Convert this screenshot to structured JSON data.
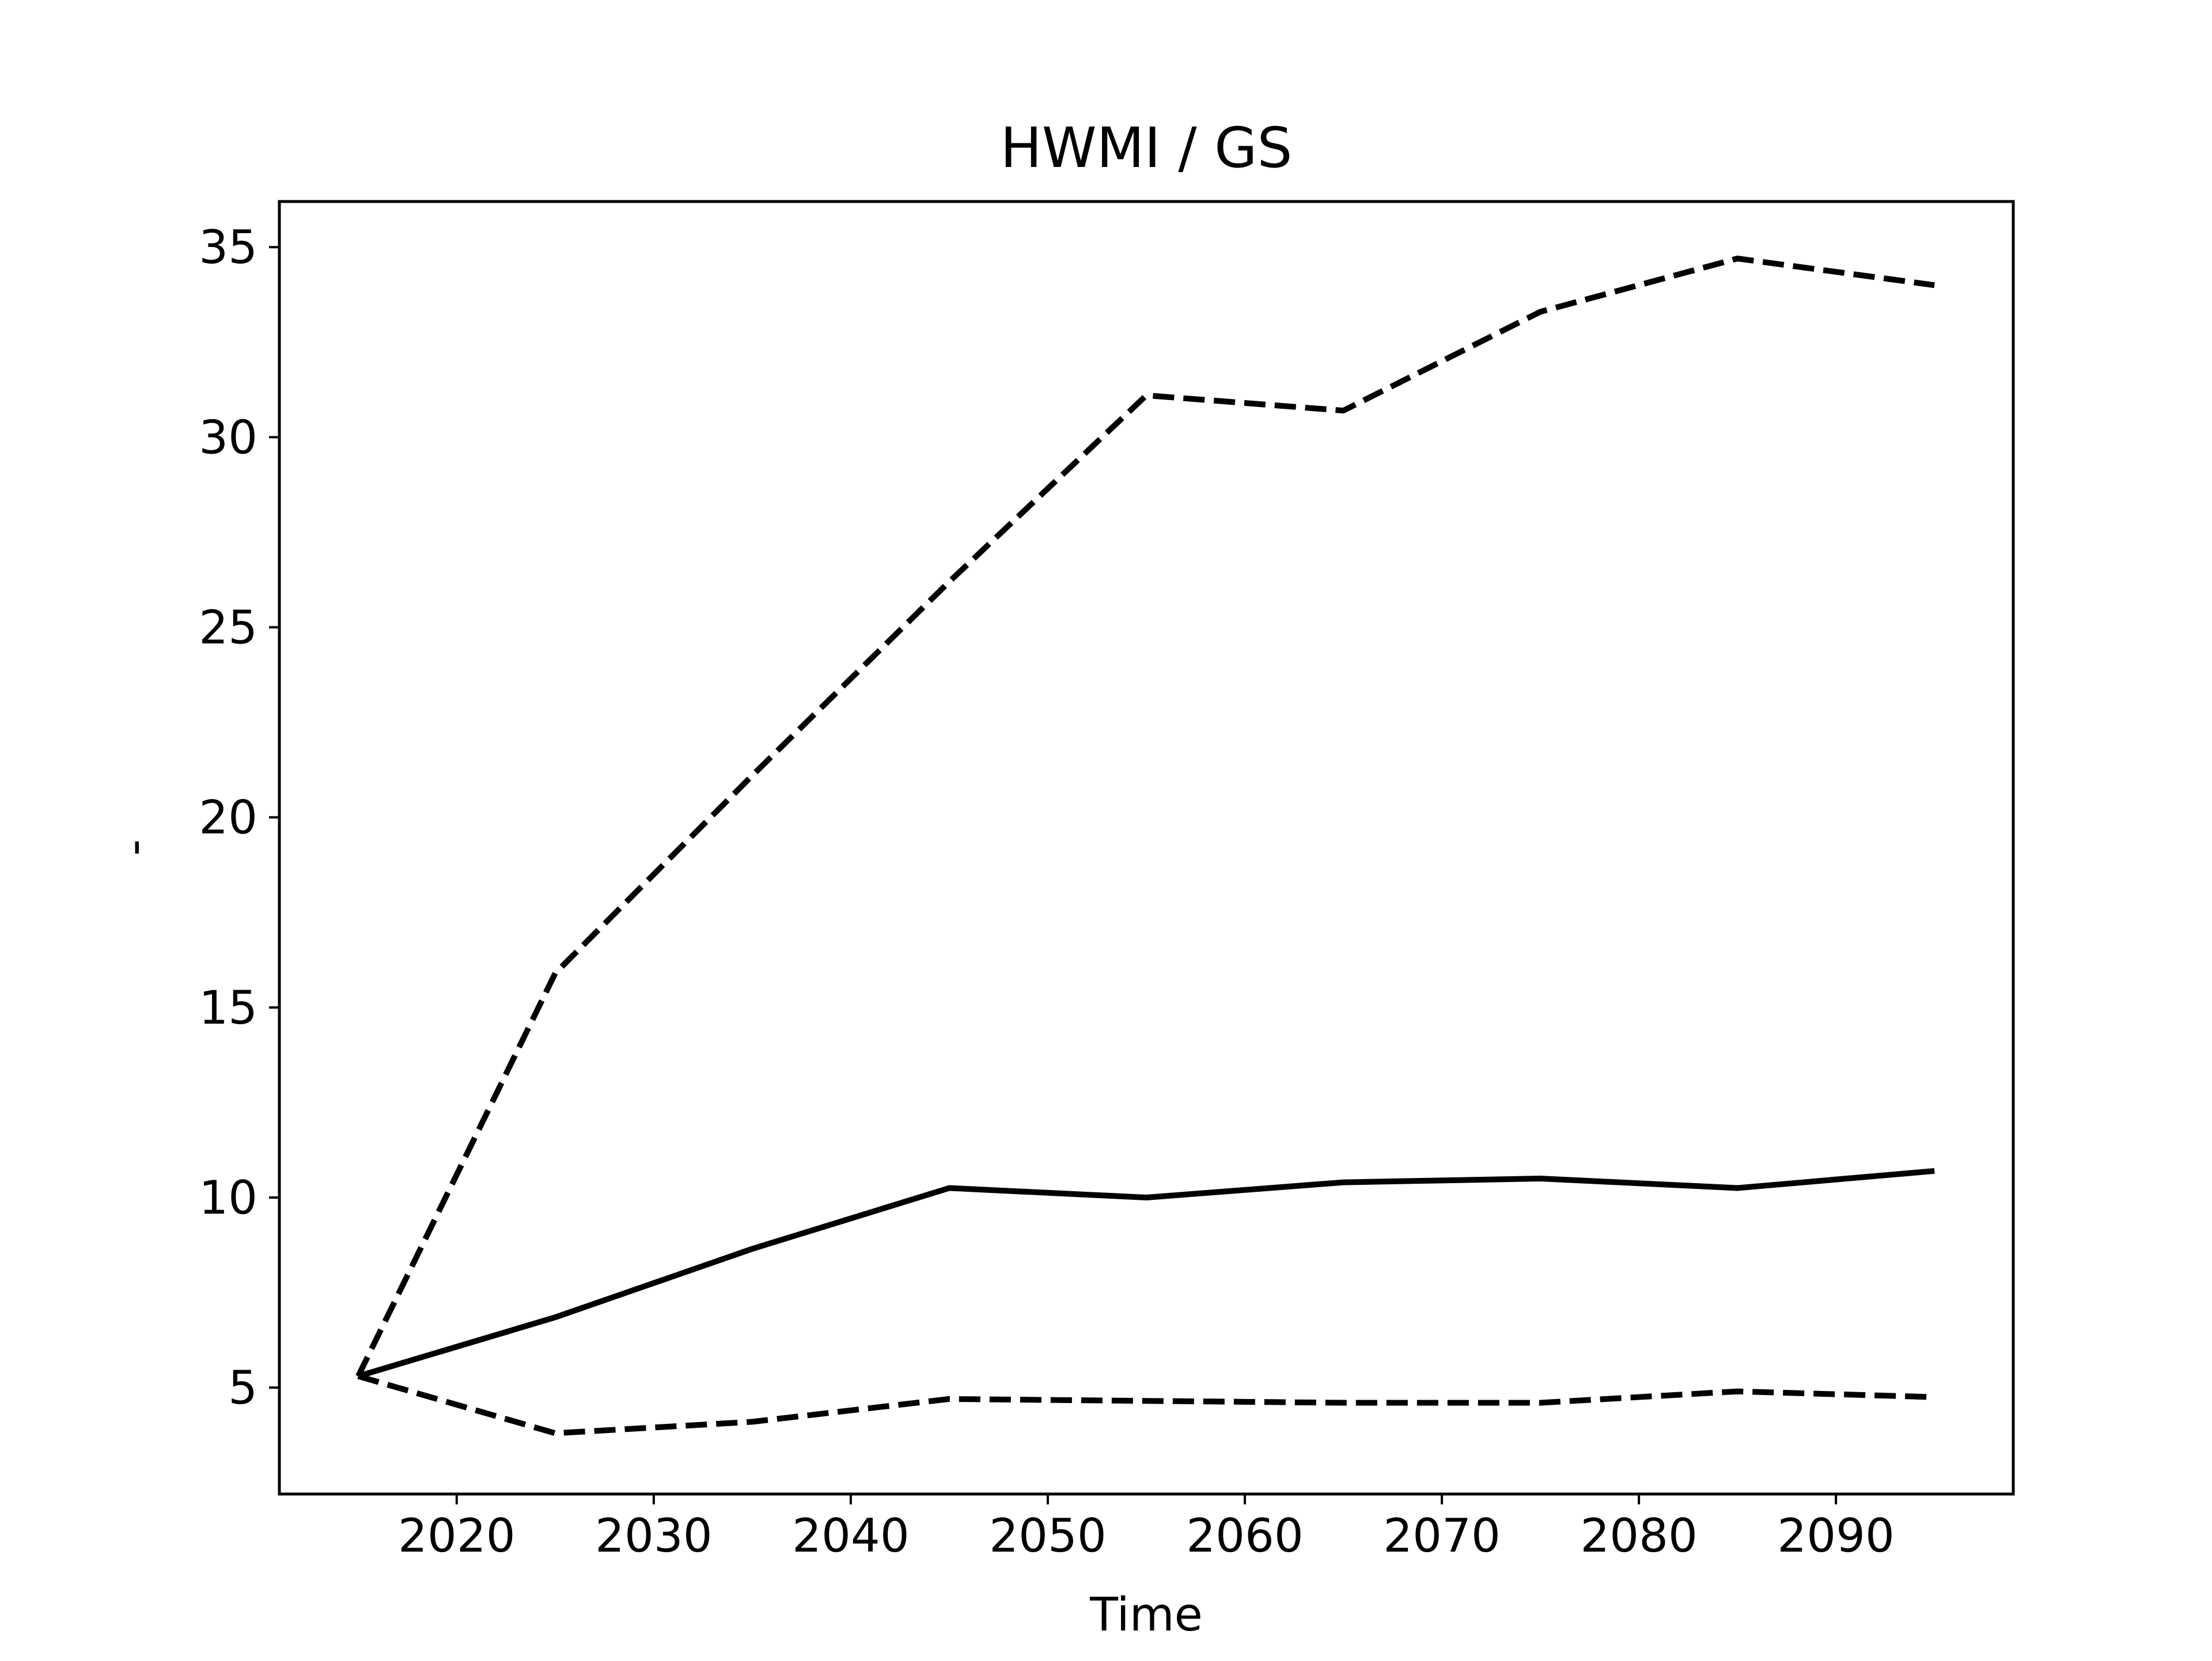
{
  "chart_data": {
    "type": "line",
    "title": "HWMI / GS",
    "xlabel": "Time",
    "ylabel": "-",
    "x": [
      2015,
      2025,
      2035,
      2045,
      2055,
      2065,
      2075,
      2085,
      2095
    ],
    "xlim": [
      2011,
      2099
    ],
    "ylim": [
      2.2,
      36.2
    ],
    "xticks": [
      2020,
      2030,
      2040,
      2050,
      2060,
      2070,
      2080,
      2090
    ],
    "yticks": [
      5,
      10,
      15,
      20,
      25,
      30,
      35
    ],
    "grid": false,
    "series": [
      {
        "style": "solid",
        "color": "#000000",
        "values": [
          5.3,
          6.85,
          8.65,
          10.25,
          10.0,
          10.4,
          10.5,
          10.25,
          10.7
        ]
      },
      {
        "style": "dashed",
        "color": "#000000",
        "values": [
          5.3,
          15.9,
          21.1,
          26.2,
          31.1,
          30.7,
          33.3,
          34.7,
          34.0
        ]
      },
      {
        "style": "dashed",
        "color": "#000000",
        "values": [
          5.3,
          3.8,
          4.1,
          4.7,
          4.65,
          4.6,
          4.6,
          4.9,
          4.75
        ]
      }
    ]
  }
}
